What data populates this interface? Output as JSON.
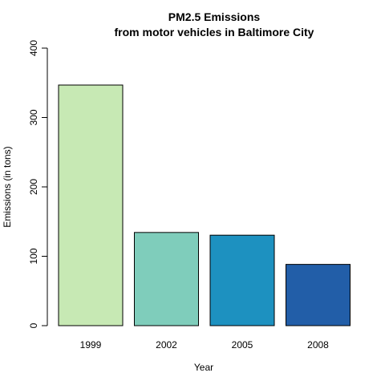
{
  "chart_data": {
    "type": "bar",
    "title": [
      "PM2.5 Emissions",
      "from motor vehicles in Baltimore City"
    ],
    "xlabel": "Year",
    "ylabel": "Emissions (in tons)",
    "categories": [
      "1999",
      "2002",
      "2005",
      "2008"
    ],
    "values": [
      346.8,
      134.3,
      130.4,
      88.3
    ],
    "colors": [
      "#c7e9b4",
      "#7fcdbb",
      "#1d91c0",
      "#225ea8"
    ],
    "ylim": [
      0,
      400
    ],
    "yticks": [
      "0",
      "100",
      "200",
      "300",
      "400"
    ],
    "grid": false,
    "legend": "none"
  }
}
